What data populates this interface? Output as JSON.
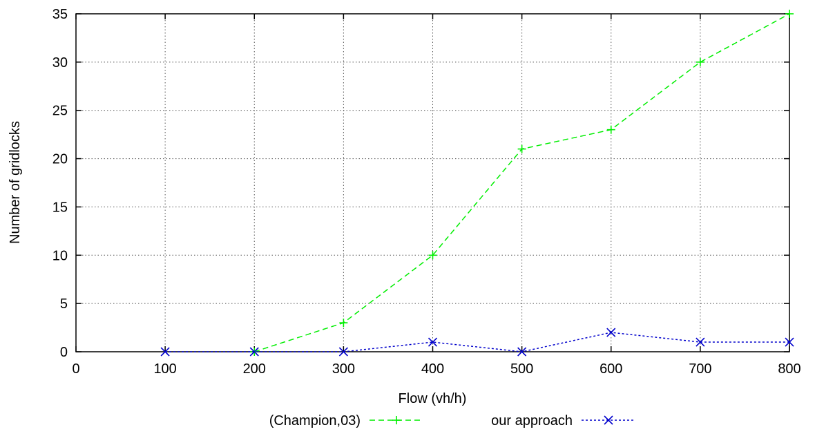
{
  "chart_data": {
    "type": "line",
    "xlabel": "Flow (vh/h)",
    "ylabel": "Number of gridlocks",
    "xlim": [
      0,
      800
    ],
    "ylim": [
      0,
      35
    ],
    "xticks": [
      0,
      100,
      200,
      300,
      400,
      500,
      600,
      700,
      800
    ],
    "yticks": [
      0,
      5,
      10,
      15,
      20,
      25,
      30,
      35
    ],
    "grid": true,
    "legend_position": "bottom-center",
    "series": [
      {
        "name": "(Champion,03)",
        "color": "#00ee00",
        "marker": "plus",
        "line_style": "dashed",
        "x": [
          200,
          300,
          400,
          500,
          600,
          700,
          800
        ],
        "y": [
          0,
          3,
          10,
          21,
          23,
          30,
          35
        ]
      },
      {
        "name": "our approach",
        "color": "#0000cc",
        "marker": "cross",
        "line_style": "dotted",
        "x": [
          100,
          200,
          300,
          400,
          500,
          600,
          700,
          800
        ],
        "y": [
          0,
          0,
          0,
          1,
          0,
          2,
          1,
          1
        ]
      }
    ]
  }
}
